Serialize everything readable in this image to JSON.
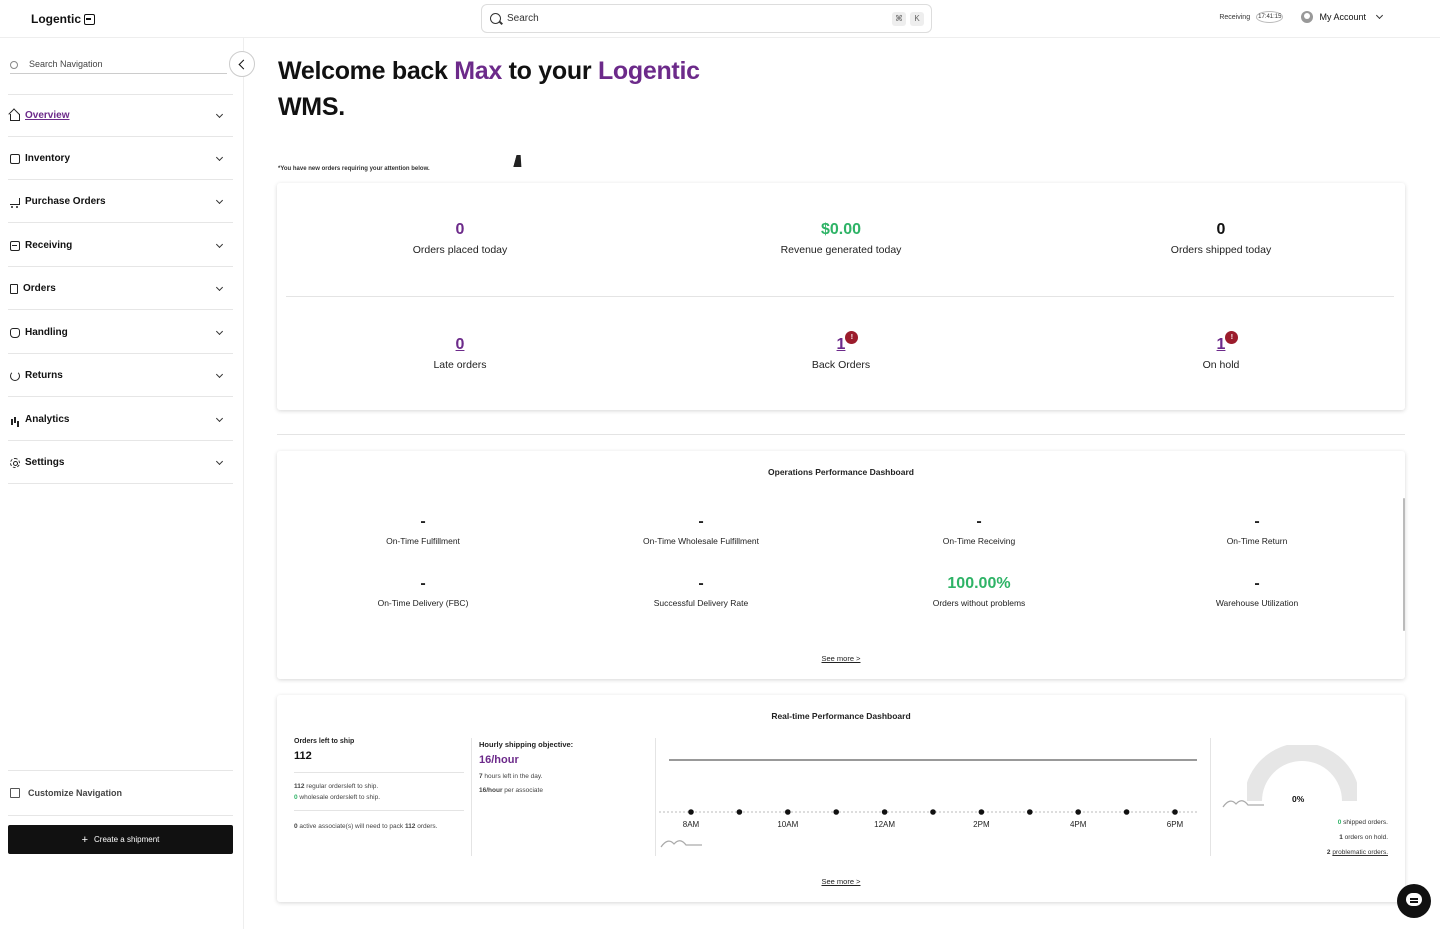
{
  "header": {
    "logo": "Logentic",
    "search_placeholder": "Search",
    "kbd_cmd": "⌘",
    "kbd_k": "K",
    "receiving_label": "Receiving",
    "receiving_time": "17:41:15",
    "account_label": "My Account"
  },
  "sidebar": {
    "search_placeholder": "Search Navigation",
    "items": [
      {
        "label": "Overview",
        "icon": "home-icon",
        "active": true
      },
      {
        "label": "Inventory",
        "icon": "box-icon"
      },
      {
        "label": "Purchase Orders",
        "icon": "cart-icon"
      },
      {
        "label": "Receiving",
        "icon": "receiving-icon"
      },
      {
        "label": "Orders",
        "icon": "document-icon"
      },
      {
        "label": "Handling",
        "icon": "hand-icon"
      },
      {
        "label": "Returns",
        "icon": "return-icon"
      },
      {
        "label": "Analytics",
        "icon": "bar-chart-icon"
      },
      {
        "label": "Settings",
        "icon": "gear-icon"
      }
    ],
    "customize_label": "Customize Navigation",
    "create_shipment_label": "Create a shipment"
  },
  "welcome": {
    "part1": "Welcome back ",
    "name": "Max",
    "part2": " to your ",
    "brand": "Logentic",
    "part3": "WMS."
  },
  "notice": "*You have new orders requiring your attention below.",
  "kpis": {
    "orders_placed": {
      "value": "0",
      "label": "Orders placed today"
    },
    "revenue": {
      "value": "$0.00",
      "label": "Revenue generated today"
    },
    "orders_shipped": {
      "value": "0",
      "label": "Orders shipped today"
    },
    "late_orders": {
      "value": "0",
      "label": "Late orders"
    },
    "back_orders": {
      "value": "1",
      "label": "Back Orders",
      "badge": "!"
    },
    "on_hold": {
      "value": "1",
      "label": "On hold",
      "badge": "!"
    }
  },
  "ops": {
    "title": "Operations Performance Dashboard",
    "metrics": [
      {
        "value": "-",
        "label": "On-Time Fulfillment"
      },
      {
        "value": "-",
        "label": "On-Time Wholesale Fulfillment"
      },
      {
        "value": "-",
        "label": "On-Time Receiving"
      },
      {
        "value": "-",
        "label": "On-Time Return"
      },
      {
        "value": "-",
        "label": "On-Time Delivery (FBC)"
      },
      {
        "value": "-",
        "label": "Successful Delivery Rate"
      },
      {
        "value": "100.00%",
        "label": "Orders without problems"
      },
      {
        "value": "-",
        "label": "Warehouse Utilization"
      }
    ],
    "see_more": "See more >"
  },
  "realtime": {
    "title": "Real-time Performance Dashboard",
    "orders_left_label": "Orders left to ship",
    "orders_left_value": "112",
    "regular_count": "112",
    "regular_text": " regular ordersleft to ship.",
    "wholesale_count": "0",
    "wholesale_text": " wholesale ordersleft to ship.",
    "assoc_count": "0",
    "assoc_text1": " active associate(s) will need to pack ",
    "assoc_orders": "112",
    "assoc_text2": " orders.",
    "objective_label": "Hourly shipping objective:",
    "objective_value": "16/hour",
    "hours_count": "7",
    "hours_text": " hours left in the day.",
    "per_assoc_value": "16/hour",
    "per_assoc_text": " per associate",
    "gauge_value": "0%",
    "shipped_count": "0",
    "shipped_text": " shipped orders.",
    "hold_count": "1",
    "hold_text": " orders on hold.",
    "problem_count": "2",
    "problem_text": "problematic orders.",
    "see_more": "See more >"
  },
  "chart_data": {
    "type": "line",
    "x": [
      "8AM",
      "9AM",
      "10AM",
      "11AM",
      "12AM",
      "1PM",
      "2PM",
      "3PM",
      "4PM",
      "5PM",
      "6PM"
    ],
    "tick_labels": [
      "8AM",
      "10AM",
      "12AM",
      "2PM",
      "4PM",
      "6PM"
    ],
    "series": [
      {
        "values": [
          0,
          0,
          0,
          0,
          0,
          0,
          0,
          0,
          0,
          0,
          0
        ]
      }
    ],
    "objective": 16,
    "ylim": [
      0,
      16
    ]
  }
}
